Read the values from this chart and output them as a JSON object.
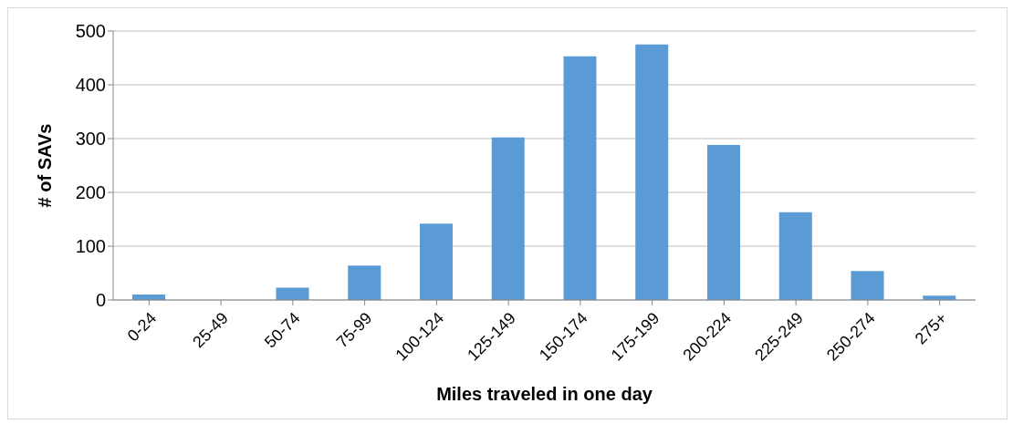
{
  "chart_data": {
    "type": "bar",
    "xlabel": "Miles traveled in one day",
    "ylabel": "# of SAVs",
    "categories": [
      "0-24",
      "25-49",
      "50-74",
      "75-99",
      "100-124",
      "125-149",
      "150-174",
      "175-199",
      "200-224",
      "225-249",
      "250-274",
      "275+"
    ],
    "values": [
      10,
      0,
      23,
      64,
      142,
      302,
      453,
      475,
      288,
      163,
      54,
      8
    ],
    "color": "#5b9bd5",
    "ylim": [
      0,
      500
    ],
    "yticks": [
      0,
      100,
      200,
      300,
      400,
      500
    ],
    "grid": "y"
  }
}
